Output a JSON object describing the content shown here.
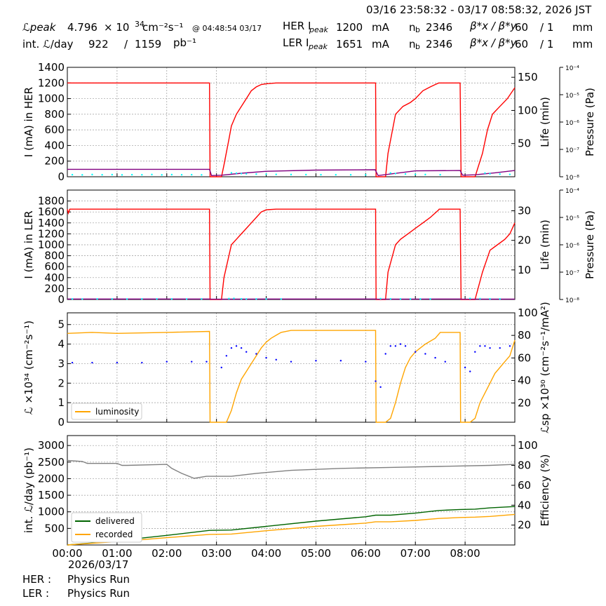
{
  "header": {
    "time_range": "03/16 23:58:32 - 03/17 08:58:32, 2026 JST",
    "lpeak_label": "ℒpeak",
    "lpeak_value": "4.796",
    "lpeak_times": "× 10",
    "lpeak_exp": "34",
    "lpeak_unit": "cm⁻²s⁻¹",
    "lpeak_at": "@ 04:48:54 03/17",
    "intl_label": "int. ℒ/day",
    "intl_recorded": "922",
    "intl_slash": "/",
    "intl_delivered": "1159",
    "intl_unit": "pb⁻¹",
    "her_label": "HER I",
    "her_sub": "peak",
    "her_val": "1200",
    "her_unit": "mA",
    "her_nb_label": "n",
    "her_nb_sub": "b",
    "her_nb_val": "2346",
    "her_beta_label": "β*x / β*y",
    "her_beta_x": "60",
    "her_beta_y": "/ 1",
    "her_beta_unit": "mm",
    "ler_label": "LER I",
    "ler_sub": "peak",
    "ler_val": "1651",
    "ler_unit": "mA",
    "ler_nb_label": "n",
    "ler_nb_sub": "b",
    "ler_nb_val": "2346",
    "ler_beta_label": "β*x / β*y",
    "ler_beta_x": "60",
    "ler_beta_y": "/ 1",
    "ler_beta_unit": "mm"
  },
  "footer": {
    "date": "2026/03/17",
    "her_status_label": "HER :",
    "her_status": "Physics Run",
    "ler_status_label": "LER :",
    "ler_status": "Physics Run"
  },
  "chart_data": [
    {
      "type": "line",
      "name": "her-panel",
      "ylabel": "I (mA) in HER",
      "ylim": [
        0,
        1400
      ],
      "yticks": [
        0,
        200,
        400,
        600,
        800,
        1000,
        1200,
        1400
      ],
      "y2label": "Life (min)",
      "y2lim": [
        0,
        165
      ],
      "y2ticks": [
        50,
        100,
        150
      ],
      "y3label": "Pressure (Pa)",
      "y3ticks": [
        "10⁻⁴",
        "10⁻⁵",
        "10⁻⁶",
        "10⁻⁷",
        "10⁻⁸"
      ],
      "xlim": [
        0,
        9
      ],
      "grid": true,
      "series": [
        {
          "color": "#ff0000",
          "x": [
            0,
            2.86,
            2.87,
            3.1,
            3.15,
            3.25,
            3.3,
            3.4,
            3.5,
            3.6,
            3.7,
            3.8,
            3.9,
            4.0,
            4.2,
            4.4,
            6.2,
            6.21,
            6.4,
            6.45,
            6.6,
            6.75,
            6.9,
            7.0,
            7.15,
            7.3,
            7.4,
            7.47,
            7.48,
            7.9,
            7.92,
            8.2,
            8.35,
            8.45,
            8.55,
            8.7,
            8.85,
            9.0
          ],
          "y": [
            1200,
            1200,
            0,
            0,
            150,
            480,
            650,
            800,
            900,
            1000,
            1100,
            1150,
            1180,
            1190,
            1200,
            1200,
            1200,
            0,
            0,
            300,
            800,
            900,
            950,
            1000,
            1100,
            1150,
            1180,
            1200,
            1200,
            1200,
            0,
            0,
            300,
            600,
            800,
            900,
            1000,
            1140
          ]
        },
        {
          "color": "#800080",
          "x": [
            0,
            2.86,
            2.9,
            3.1,
            3.5,
            4.0,
            5.0,
            6.19,
            6.25,
            6.5,
            7.0,
            7.9,
            7.95,
            8.2,
            8.6,
            9.0
          ],
          "y": [
            95,
            95,
            15,
            20,
            45,
            70,
            85,
            90,
            15,
            35,
            75,
            80,
            20,
            25,
            50,
            80
          ]
        },
        {
          "color": "#00ffff",
          "style": "dots",
          "x": [
            0.1,
            0.3,
            0.5,
            0.7,
            0.9,
            1.1,
            1.3,
            1.5,
            1.7,
            1.9,
            2.1,
            2.3,
            2.5,
            2.7,
            3.3,
            3.4,
            3.5,
            3.6,
            3.8,
            4.0,
            4.2,
            4.5,
            4.8,
            5.1,
            5.4,
            5.7,
            6.0,
            6.5,
            6.6,
            6.8,
            7.0,
            7.2,
            7.5,
            8.4,
            8.5,
            8.7,
            8.9
          ],
          "y": [
            26,
            24,
            28,
            25,
            27,
            24,
            26,
            25,
            28,
            24,
            27,
            25,
            26,
            24,
            50,
            45,
            40,
            38,
            34,
            32,
            30,
            28,
            27,
            26,
            25,
            25,
            24,
            48,
            40,
            35,
            30,
            28,
            26,
            46,
            38,
            34,
            30
          ]
        }
      ]
    },
    {
      "type": "line",
      "name": "ler-panel",
      "ylabel": "I (mA) in LER",
      "ylim": [
        0,
        2000
      ],
      "yticks": [
        0,
        200,
        400,
        600,
        800,
        1000,
        1200,
        1400,
        1600,
        1800
      ],
      "y2label": "Life (min)",
      "y2lim": [
        0,
        37
      ],
      "y2ticks": [
        10,
        20,
        30
      ],
      "y3label": "Pressure (Pa)",
      "y3ticks": [
        "10⁻⁴",
        "10⁻⁵",
        "10⁻⁶",
        "10⁻⁷",
        "10⁻⁸"
      ],
      "xlim": [
        0,
        9
      ],
      "grid": true,
      "series": [
        {
          "color": "#ff0000",
          "x": [
            0,
            0.02,
            0.05,
            2.86,
            2.87,
            3.1,
            3.15,
            3.3,
            3.4,
            3.5,
            3.6,
            3.7,
            3.8,
            3.9,
            4.0,
            4.2,
            4.4,
            6.2,
            6.21,
            6.4,
            6.45,
            6.6,
            6.7,
            6.85,
            7.0,
            7.15,
            7.3,
            7.47,
            7.48,
            7.9,
            7.92,
            8.2,
            8.35,
            8.5,
            8.65,
            8.8,
            8.9,
            9.0
          ],
          "y": [
            1651,
            1580,
            1651,
            1651,
            0,
            0,
            400,
            1000,
            1100,
            1200,
            1300,
            1400,
            1500,
            1600,
            1640,
            1651,
            1651,
            1651,
            0,
            0,
            500,
            1000,
            1100,
            1200,
            1300,
            1400,
            1500,
            1640,
            1651,
            1651,
            0,
            0,
            500,
            900,
            1000,
            1100,
            1200,
            1400
          ]
        },
        {
          "color": "#800080",
          "x": [
            0,
            2.86,
            2.9,
            3.1,
            3.3,
            3.6,
            4.0,
            4.4,
            6.19,
            6.25,
            6.5,
            7.0,
            7.47,
            7.9,
            7.95,
            8.1,
            8.3,
            8.6,
            9.0
          ],
          "y": [
            9.5,
            9.5,
            5.5,
            5.0,
            6.0,
            7.5,
            8.5,
            9.3,
            9.3,
            5.5,
            6.0,
            7.5,
            9.0,
            9.2,
            5.5,
            5.0,
            6.5,
            7.0,
            7.5
          ]
        },
        {
          "color": "#00ffff",
          "style": "dots",
          "x": [
            0.1,
            0.3,
            0.6,
            0.9,
            1.2,
            1.5,
            1.8,
            2.1,
            2.4,
            2.7,
            3.25,
            3.35,
            3.5,
            3.6,
            3.8,
            4.0,
            4.3,
            6.3,
            6.5,
            6.7,
            6.9,
            7.1,
            7.3,
            8.1,
            8.3,
            8.5,
            8.7
          ],
          "y": [
            10,
            9,
            11,
            10,
            9,
            10,
            11,
            10,
            9,
            10,
            16,
            20,
            12,
            11,
            10,
            10,
            9,
            15,
            12,
            11,
            10,
            10,
            10,
            18,
            15,
            12,
            11
          ]
        }
      ]
    },
    {
      "type": "line",
      "name": "lumi-panel",
      "ylabel": "ℒ ×10³⁴ (cm⁻²s⁻¹)",
      "ylim": [
        0,
        5.6
      ],
      "yticks": [
        0,
        1,
        2,
        3,
        4,
        5
      ],
      "y2label": "ℒsp ×10³⁰ (cm⁻²s⁻¹/mA²)",
      "y2lim": [
        3,
        100
      ],
      "y2ticks": [
        20,
        40,
        60,
        80,
        100
      ],
      "xlim": [
        0,
        9
      ],
      "grid": true,
      "legend": "lower-left",
      "series": [
        {
          "name": "luminosity",
          "color": "#ffa500",
          "x": [
            0,
            0.5,
            1.0,
            2.0,
            2.86,
            2.87,
            3.2,
            3.3,
            3.4,
            3.5,
            3.6,
            3.7,
            3.8,
            3.9,
            4.0,
            4.1,
            4.2,
            4.3,
            4.5,
            5.0,
            6.2,
            6.21,
            6.4,
            6.5,
            6.6,
            6.7,
            6.8,
            6.9,
            7.0,
            7.1,
            7.2,
            7.4,
            7.5,
            7.9,
            7.91,
            8.1,
            8.2,
            8.3,
            8.4,
            8.5,
            8.6,
            8.7,
            8.8,
            8.9,
            9.0
          ],
          "y": [
            4.55,
            4.6,
            4.55,
            4.6,
            4.65,
            0,
            0,
            0.6,
            1.5,
            2.2,
            2.6,
            3.0,
            3.4,
            3.8,
            4.1,
            4.3,
            4.45,
            4.6,
            4.7,
            4.7,
            4.7,
            0,
            0,
            0.2,
            1.0,
            2.0,
            2.8,
            3.3,
            3.6,
            3.8,
            4.0,
            4.3,
            4.6,
            4.6,
            0,
            0,
            0.2,
            1.0,
            1.5,
            2.0,
            2.5,
            2.8,
            3.1,
            3.4,
            4.2
          ]
        },
        {
          "color": "#0000ff",
          "style": "dots",
          "x": [
            0.1,
            0.5,
            1.0,
            1.5,
            2.0,
            2.5,
            2.8,
            3.1,
            3.2,
            3.3,
            3.4,
            3.5,
            3.6,
            3.8,
            4.0,
            4.2,
            4.5,
            5.0,
            5.5,
            6.0,
            6.2,
            6.3,
            6.4,
            6.5,
            6.6,
            6.7,
            6.8,
            7.0,
            7.2,
            7.4,
            7.6,
            8.0,
            8.1,
            8.2,
            8.3,
            8.4,
            8.5,
            8.7,
            8.9
          ],
          "y": [
            3.05,
            3.05,
            3.05,
            3.05,
            3.1,
            3.1,
            3.1,
            2.8,
            3.4,
            3.8,
            3.9,
            3.8,
            3.6,
            3.5,
            3.3,
            3.2,
            3.1,
            3.15,
            3.15,
            3.1,
            2.1,
            1.8,
            3.5,
            3.9,
            3.9,
            4.0,
            3.9,
            3.6,
            3.5,
            3.3,
            3.1,
            2.8,
            2.6,
            3.6,
            3.9,
            3.9,
            3.8,
            3.8,
            3.9
          ]
        }
      ]
    },
    {
      "type": "line",
      "name": "intlumi-panel",
      "ylabel": "int. ℒ/day (pb⁻¹)",
      "ylim": [
        0,
        3300
      ],
      "yticks": [
        500,
        1000,
        1500,
        2000,
        2500,
        3000
      ],
      "y2label": "Efficiency (%)",
      "y2lim": [
        0,
        110
      ],
      "y2ticks": [
        20,
        40,
        60,
        80,
        100
      ],
      "xlim": [
        0,
        9
      ],
      "xticks": [
        "00:00",
        "01:00",
        "02:00",
        "03:00",
        "04:00",
        "05:00",
        "06:00",
        "07:00",
        "08:00"
      ],
      "grid": true,
      "legend": "lower-left",
      "series": [
        {
          "name": "delivered",
          "color": "#006400",
          "x": [
            0,
            0.5,
            1.0,
            2.0,
            2.86,
            3.3,
            4.0,
            5.0,
            6.0,
            6.2,
            6.5,
            7.0,
            7.47,
            7.9,
            8.2,
            8.5,
            9.0
          ],
          "y": [
            0,
            60,
            130,
            290,
            440,
            450,
            560,
            720,
            850,
            900,
            900,
            960,
            1040,
            1070,
            1080,
            1120,
            1159
          ]
        },
        {
          "name": "recorded",
          "color": "#ffa500",
          "x": [
            0,
            0.5,
            1.0,
            2.0,
            2.86,
            3.3,
            4.0,
            5.0,
            6.0,
            6.2,
            6.5,
            7.0,
            7.47,
            7.9,
            8.2,
            8.5,
            9.0
          ],
          "y": [
            0,
            50,
            100,
            220,
            320,
            330,
            430,
            560,
            660,
            700,
            700,
            740,
            800,
            830,
            840,
            860,
            922
          ]
        },
        {
          "color": "#808080",
          "x": [
            0,
            0.3,
            0.4,
            1.0,
            1.1,
            1.2,
            2.0,
            2.1,
            2.3,
            2.55,
            2.8,
            3.0,
            3.3,
            3.8,
            4.5,
            5.5,
            6.5,
            7.5,
            8.5,
            9.0
          ],
          "y2": [
            85,
            84,
            82,
            82,
            80,
            80,
            81,
            77,
            72,
            67,
            69,
            69,
            69,
            72,
            75,
            77,
            78,
            79,
            80,
            81
          ]
        }
      ]
    }
  ]
}
